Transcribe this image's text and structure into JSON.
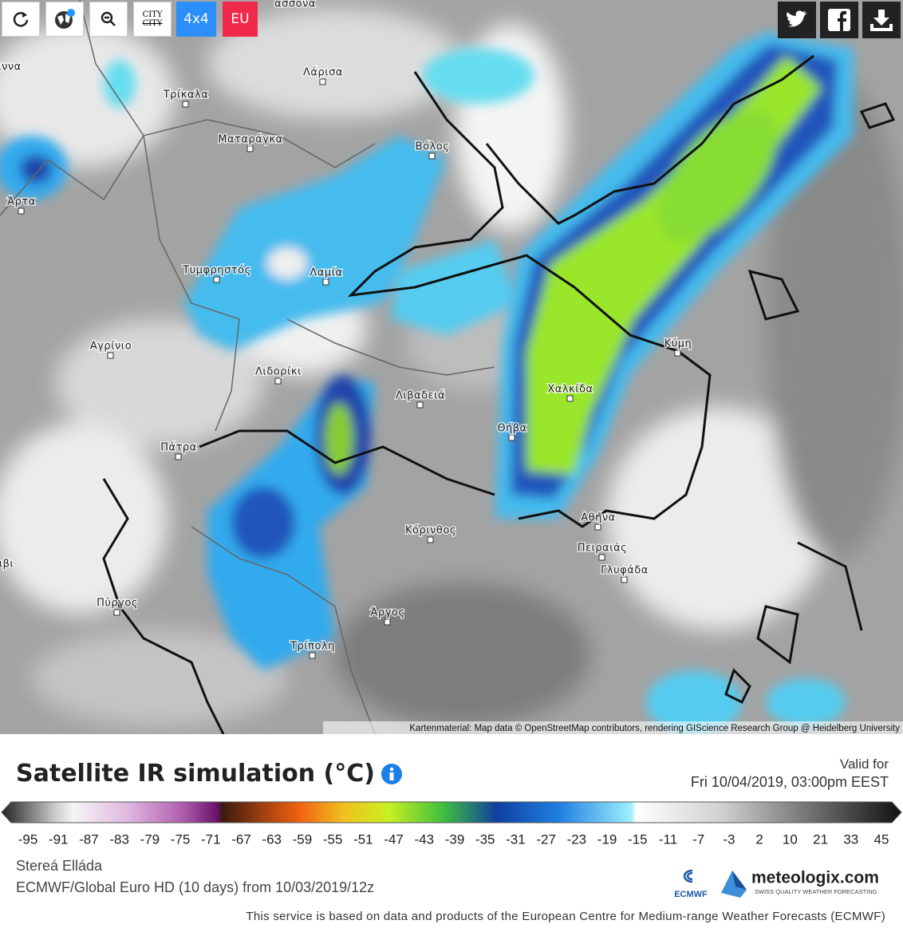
{
  "toolbar": {
    "city_on": "CITY",
    "city_off": "CITY",
    "grid": "4x4",
    "region": "EU"
  },
  "map": {
    "cities": [
      "ασσόνα",
      "ιννα",
      "Λάρισα",
      "Τρίκαλα",
      "Ματαράγκα",
      "Βόλος",
      "Άρτα",
      "Τυμφρηστός",
      "Λαμία",
      "Αγρίνιο",
      "Λιδορίκι",
      "Λιβαδειά",
      "Κύμη",
      "Χαλκίδα",
      "Θήβα",
      "Πάτρα",
      "Κόρινθος",
      "Αθήνα",
      "Πειραιάς",
      "Γλυφάδα",
      "ιβι",
      "Πύργος",
      "Άργος",
      "Τρίπολη"
    ],
    "attribution": "Kartenmaterial: Map data © OpenStreetMap contributors, rendering GIScience Research Group @ Heidelberg University"
  },
  "legend": {
    "title": "Satellite IR simulation (°C)",
    "valid_label": "Valid for",
    "valid_time": "Fri 10/04/2019, 03:00pm EEST",
    "scale": [
      -95,
      -91,
      -87,
      -83,
      -79,
      -75,
      -71,
      -67,
      -63,
      -59,
      -55,
      -51,
      -47,
      -43,
      -39,
      -35,
      -31,
      -27,
      -23,
      -19,
      -15,
      -11,
      -7,
      -3,
      2,
      10,
      21,
      33,
      45
    ],
    "region": "Stereá Elláda",
    "model": "ECMWF/Global Euro HD (10 days) from 10/03/2019/12z"
  },
  "footer": {
    "ecmwf": "ECMWF",
    "brand": "meteologix.com",
    "tagline": "SWISS QUALITY WEATHER FORECASTING",
    "notice": "This service is based on data and products of the European Centre for Medium-range Weather Forecasts (ECMWF)"
  }
}
